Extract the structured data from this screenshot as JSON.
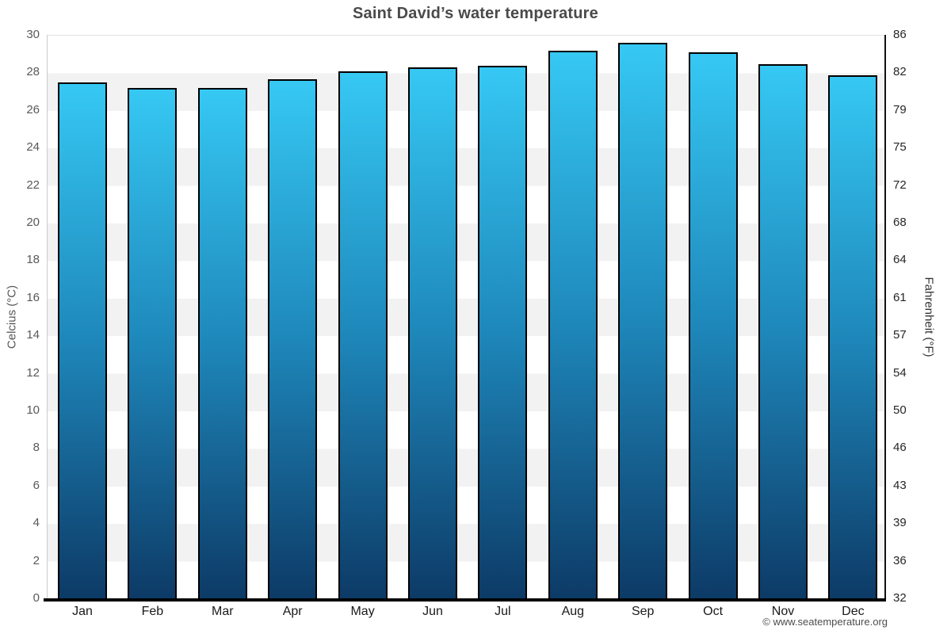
{
  "page": {
    "copyright": "© www.seatemperature.org"
  },
  "chart_data": {
    "type": "bar",
    "title": "Saint David’s water temperature",
    "categories": [
      "Jan",
      "Feb",
      "Mar",
      "Apr",
      "May",
      "Jun",
      "Jul",
      "Aug",
      "Sep",
      "Oct",
      "Nov",
      "Dec"
    ],
    "series": [
      {
        "name": "Water temperature (°C)",
        "values": [
          27.5,
          27.2,
          27.2,
          27.7,
          28.1,
          28.3,
          28.4,
          29.2,
          29.6,
          29.1,
          28.5,
          27.9
        ]
      }
    ],
    "ylabel_left": "Celcius (°C)",
    "ylabel_right": "Fahrenheit (°F)",
    "ylim_celsius": [
      0,
      30
    ],
    "celsius_ticks_top_down": [
      30,
      28,
      26,
      24,
      22,
      20,
      18,
      16,
      14,
      12,
      10,
      8,
      6,
      4,
      2,
      0
    ],
    "fahrenheit_ticks_top_down": [
      86,
      82,
      79,
      75,
      72,
      68,
      64,
      61,
      57,
      54,
      50,
      46,
      43,
      39,
      36,
      32
    ],
    "grid": "alternating horizontal bands",
    "legend_position": "none",
    "colors": {
      "bar_gradient_top": "#36c8f3",
      "bar_gradient_mid": "#1e87ba",
      "bar_gradient_bottom": "#0d3a66",
      "bar_border": "#000000",
      "band_light": "#ffffff",
      "band_gray": "#f2f2f2",
      "axis_bottom": "#000000",
      "title_color": "#4a4a4a"
    }
  }
}
